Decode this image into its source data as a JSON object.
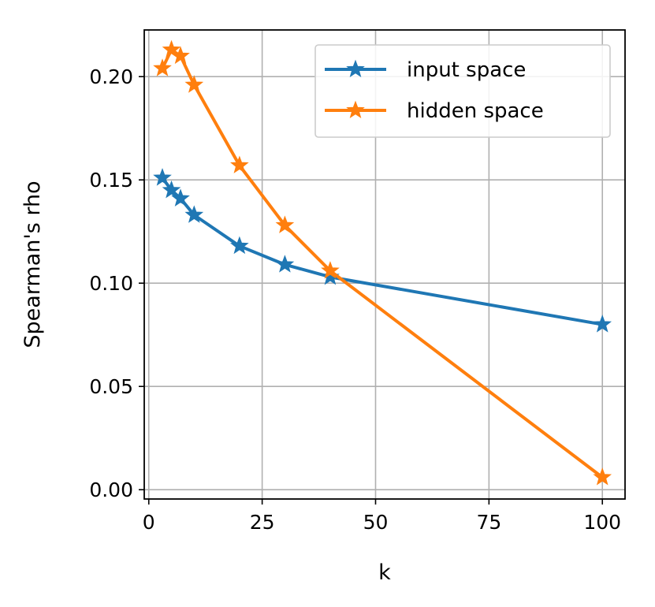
{
  "chart_data": {
    "type": "line",
    "xlabel": "k",
    "ylabel": "Spearman's rho",
    "xlim": [
      -1,
      105
    ],
    "ylim": [
      -0.0045,
      0.2226
    ],
    "xticks": [
      0,
      25,
      50,
      75,
      100
    ],
    "xtick_labels": [
      "0",
      "25",
      "50",
      "75",
      "100"
    ],
    "yticks": [
      0.0,
      0.05,
      0.1,
      0.15,
      0.2
    ],
    "ytick_labels": [
      "0.00",
      "0.05",
      "0.10",
      "0.15",
      "0.20"
    ],
    "grid": true,
    "legend_position": "upper-right",
    "marker": "star",
    "series": [
      {
        "name": "input space",
        "color": "#1f77b4",
        "x": [
          3,
          5,
          7,
          10,
          20,
          30,
          40,
          100
        ],
        "y": [
          0.151,
          0.145,
          0.141,
          0.133,
          0.118,
          0.109,
          0.103,
          0.08
        ]
      },
      {
        "name": "hidden space",
        "color": "#ff7f0e",
        "x": [
          3,
          5,
          7,
          10,
          20,
          30,
          40,
          100
        ],
        "y": [
          0.204,
          0.213,
          0.21,
          0.196,
          0.157,
          0.128,
          0.106,
          0.006
        ]
      }
    ]
  }
}
